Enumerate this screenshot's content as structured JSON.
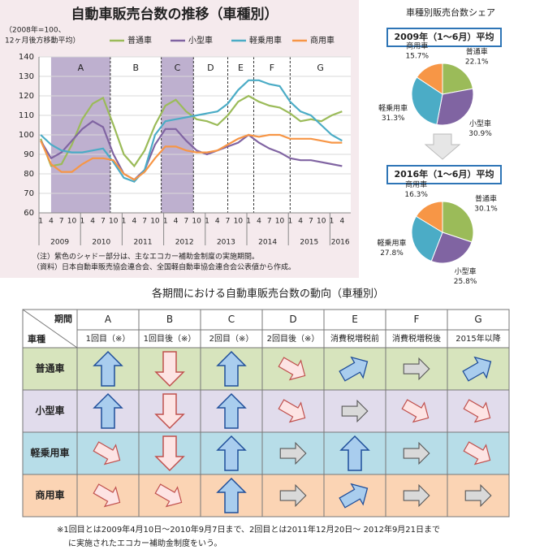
{
  "chart_data": [
    {
      "type": "line",
      "title": "自動車販売台数の推移（車種別）",
      "ylabel": [
        "（2008年=100、",
        "12ヶ月後方移動平均）"
      ],
      "categories": [
        "1",
        "4",
        "7",
        "10",
        "1",
        "4",
        "7",
        "10",
        "1",
        "4",
        "7",
        "10",
        "1",
        "4",
        "7",
        "10",
        "1",
        "4",
        "7",
        "10",
        "1",
        "4",
        "7",
        "10",
        "1",
        "4",
        "7",
        "10",
        "1",
        "4"
      ],
      "year_labels": [
        "2009",
        "2010",
        "2011",
        "2012",
        "2013",
        "2014",
        "2015",
        "2016"
      ],
      "ylim": [
        60,
        140
      ],
      "yticks": [
        60,
        70,
        80,
        90,
        100,
        110,
        120,
        130,
        140
      ],
      "periods": [
        {
          "label": "A",
          "from": 1,
          "to": 6.7,
          "shaded": true
        },
        {
          "label": "B",
          "from": 6.7,
          "to": 11.6,
          "shaded": false
        },
        {
          "label": "C",
          "from": 11.6,
          "to": 14.7,
          "shaded": true
        },
        {
          "label": "D",
          "from": 14.7,
          "to": 18,
          "shaded": false
        },
        {
          "label": "E",
          "from": 18,
          "to": 20.5,
          "shaded": false
        },
        {
          "label": "F",
          "from": 20.5,
          "to": 24,
          "shaded": false
        },
        {
          "label": "G",
          "from": 24,
          "to": 30,
          "shaded": false
        }
      ],
      "series": [
        {
          "name": "普通車",
          "color": "#9bbb59",
          "values": [
            98,
            84,
            85,
            95,
            108,
            116,
            119,
            105,
            90,
            84,
            92,
            105,
            115,
            118,
            112,
            108,
            107,
            105,
            110,
            117,
            120,
            117,
            115,
            114,
            111,
            107,
            108,
            107,
            110,
            112
          ]
        },
        {
          "name": "小型車",
          "color": "#8064a2",
          "values": [
            97,
            88,
            91,
            97,
            103,
            107,
            104,
            90,
            80,
            77,
            82,
            95,
            103,
            103,
            97,
            92,
            90,
            92,
            94,
            96,
            100,
            96,
            93,
            91,
            88,
            87,
            87,
            86,
            85,
            84
          ]
        },
        {
          "name": "軽乗用車",
          "color": "#4bacc6",
          "values": [
            100,
            95,
            92,
            91,
            91,
            92,
            93,
            86,
            78,
            76,
            82,
            100,
            107,
            108,
            109,
            110,
            111,
            112,
            116,
            123,
            128,
            128,
            126,
            125,
            117,
            112,
            110,
            105,
            100,
            97
          ]
        },
        {
          "name": "商用車",
          "color": "#f79646",
          "values": [
            97,
            85,
            81,
            81,
            85,
            88,
            88,
            87,
            80,
            77,
            81,
            88,
            94,
            94,
            92,
            91,
            91,
            92,
            95,
            98,
            100,
            99,
            100,
            100,
            98,
            98,
            98,
            97,
            96,
            96
          ]
        }
      ],
      "notes": [
        "（注）紫色のシャドー部分は、主なエコカー補助金制度の実施期間。",
        "（資料）日本自動車販売協会連合会、全国軽自動車協会連合会公表値から作成。"
      ]
    },
    {
      "type": "pie",
      "title": "2009年（1〜6月）平均",
      "categories": [
        "普通車",
        "小型車",
        "軽乗用車",
        "商用車"
      ],
      "values": [
        22.1,
        30.9,
        31.3,
        15.7
      ],
      "value_labels": [
        "22.1%",
        "30.9%",
        "31.3%",
        "15.7%"
      ],
      "colors": [
        "#9bbb59",
        "#8064a2",
        "#4bacc6",
        "#f79646"
      ]
    },
    {
      "type": "pie",
      "title": "2016年（1〜6月）平均",
      "categories": [
        "普通車",
        "小型車",
        "軽乗用車",
        "商用車"
      ],
      "values": [
        30.1,
        25.8,
        27.8,
        16.3
      ],
      "value_labels": [
        "30.1%",
        "25.8%",
        "27.8%",
        "16.3%"
      ],
      "colors": [
        "#9bbb59",
        "#8064a2",
        "#4bacc6",
        "#f79646"
      ]
    }
  ],
  "share_title": "車種別販売台数シェア",
  "table": {
    "title": "各期間における自動車販売台数の動向（車種別）",
    "corner_top": "期間",
    "corner_bottom": "車種",
    "columns": [
      {
        "label": "A",
        "sub": "1回目（※）"
      },
      {
        "label": "B",
        "sub": "1回目後（※）"
      },
      {
        "label": "C",
        "sub": "2回目（※）"
      },
      {
        "label": "D",
        "sub": "2回目後（※）"
      },
      {
        "label": "E",
        "sub": "消費税増税前"
      },
      {
        "label": "F",
        "sub": "消費税増税後"
      },
      {
        "label": "G",
        "sub": "2015年以降"
      }
    ],
    "rows": [
      {
        "name": "普通車",
        "color": "#d7e4bd",
        "trends": [
          "up",
          "down",
          "up",
          "down-right",
          "up-right",
          "right",
          "up-right"
        ]
      },
      {
        "name": "小型車",
        "color": "#e1dcec",
        "trends": [
          "up",
          "down",
          "up",
          "down-right",
          "right",
          "down-right",
          "down-right"
        ]
      },
      {
        "name": "軽乗用車",
        "color": "#b7dde8",
        "trends": [
          "down-right",
          "down",
          "up",
          "right",
          "up",
          "right",
          "down-right"
        ]
      },
      {
        "name": "商用車",
        "color": "#fbd4b4",
        "trends": [
          "down-right",
          "down-right",
          "up",
          "right",
          "up-right",
          "right",
          "right"
        ]
      }
    ],
    "footnote": [
      "※1回目とは2009年4月10日〜2010年9月7日まで、2回目とは2011年12月20日〜 2012年9月21日まで",
      "に実施されたエコカー補助金制度をいう。"
    ]
  }
}
